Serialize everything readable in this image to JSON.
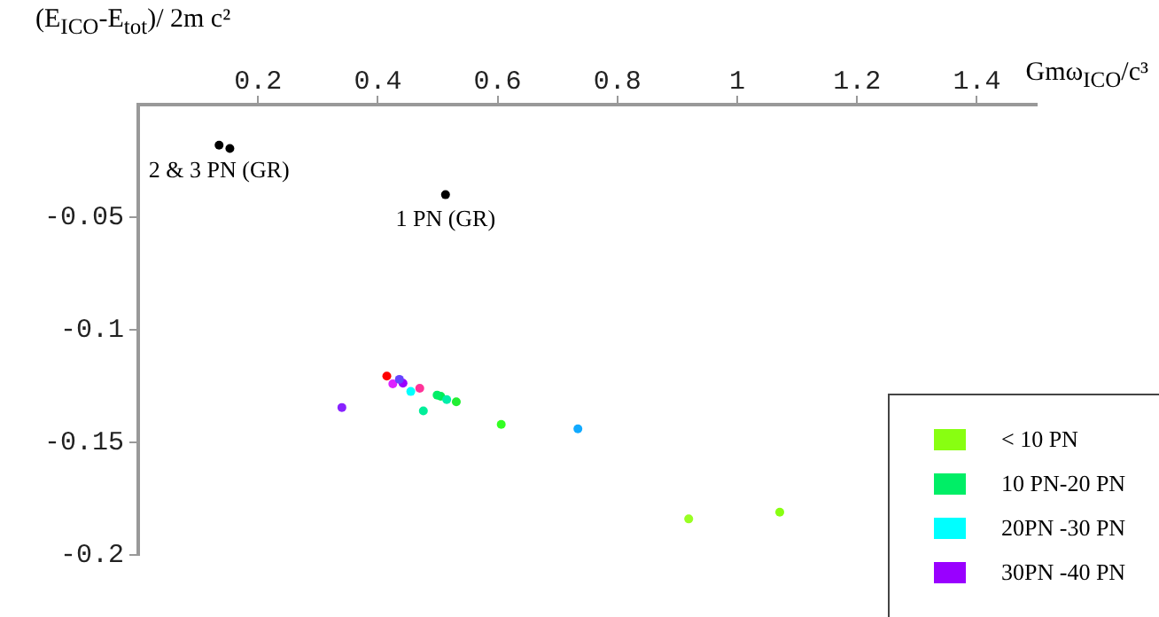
{
  "chart_data": {
    "type": "scatter",
    "xlabel": "Gmω$_{ICO}$/c³",
    "ylabel": "(E$_{ICO}$-E$_{tot}$)/ 2m c²",
    "xlim": [
      0,
      1.5
    ],
    "xticks": [
      0.2,
      0.4,
      0.6,
      0.8,
      1,
      1.2,
      1.4
    ],
    "ylim": [
      -0.2,
      0
    ],
    "yticks": [
      -0.05,
      -0.1,
      -0.15,
      -0.2
    ],
    "grid": false,
    "legend": "bottom right",
    "marker": "circle",
    "series": [
      {
        "color": "#000000",
        "x": [
          0.135,
          0.153,
          0.513
        ],
        "values": [
          -0.018,
          -0.0195,
          -0.04
        ]
      },
      {
        "name": "< 10 PN",
        "color": "#88ff11",
        "x": [
          1.071,
          0.919,
          0.606
        ],
        "values": [
          -0.181,
          -0.184,
          -0.142
        ],
        "colors": [
          "#88ff11",
          "#99ff22",
          "#33ff22"
        ]
      },
      {
        "name": "10 PN-20 PN",
        "color": "#00ee66",
        "x": [
          0.531,
          0.505,
          0.499,
          0.515,
          0.476
        ],
        "values": [
          -0.132,
          -0.1295,
          -0.129,
          -0.131,
          -0.136
        ],
        "colors": [
          "#22ee33",
          "#00ee55",
          "#00ee66",
          "#00eeaa",
          "#00ee99"
        ]
      },
      {
        "name": "20PN -30 PN",
        "color": "#00ffff",
        "x": [
          0.455,
          0.734,
          0.436
        ],
        "values": [
          -0.1274,
          -0.144,
          -0.122
        ],
        "colors": [
          "#00ffff",
          "#11aaff",
          "#6644ff"
        ]
      },
      {
        "name": "30PN -40 PN",
        "color": "#9900ff",
        "x": [
          0.442,
          0.34,
          0.425,
          0.415,
          0.47
        ],
        "values": [
          -0.1237,
          -0.1345,
          -0.124,
          -0.1206,
          -0.126
        ],
        "colors": [
          "#9900ff",
          "#8822ff",
          "#dd22ff",
          "#ff0000",
          "#ff3399"
        ]
      }
    ],
    "annotations": [
      {
        "text": "2 & 3 PN (GR)",
        "x": 0.135,
        "y": -0.018
      },
      {
        "text": "1 PN (GR)",
        "x": 0.513,
        "y": -0.04
      }
    ]
  }
}
